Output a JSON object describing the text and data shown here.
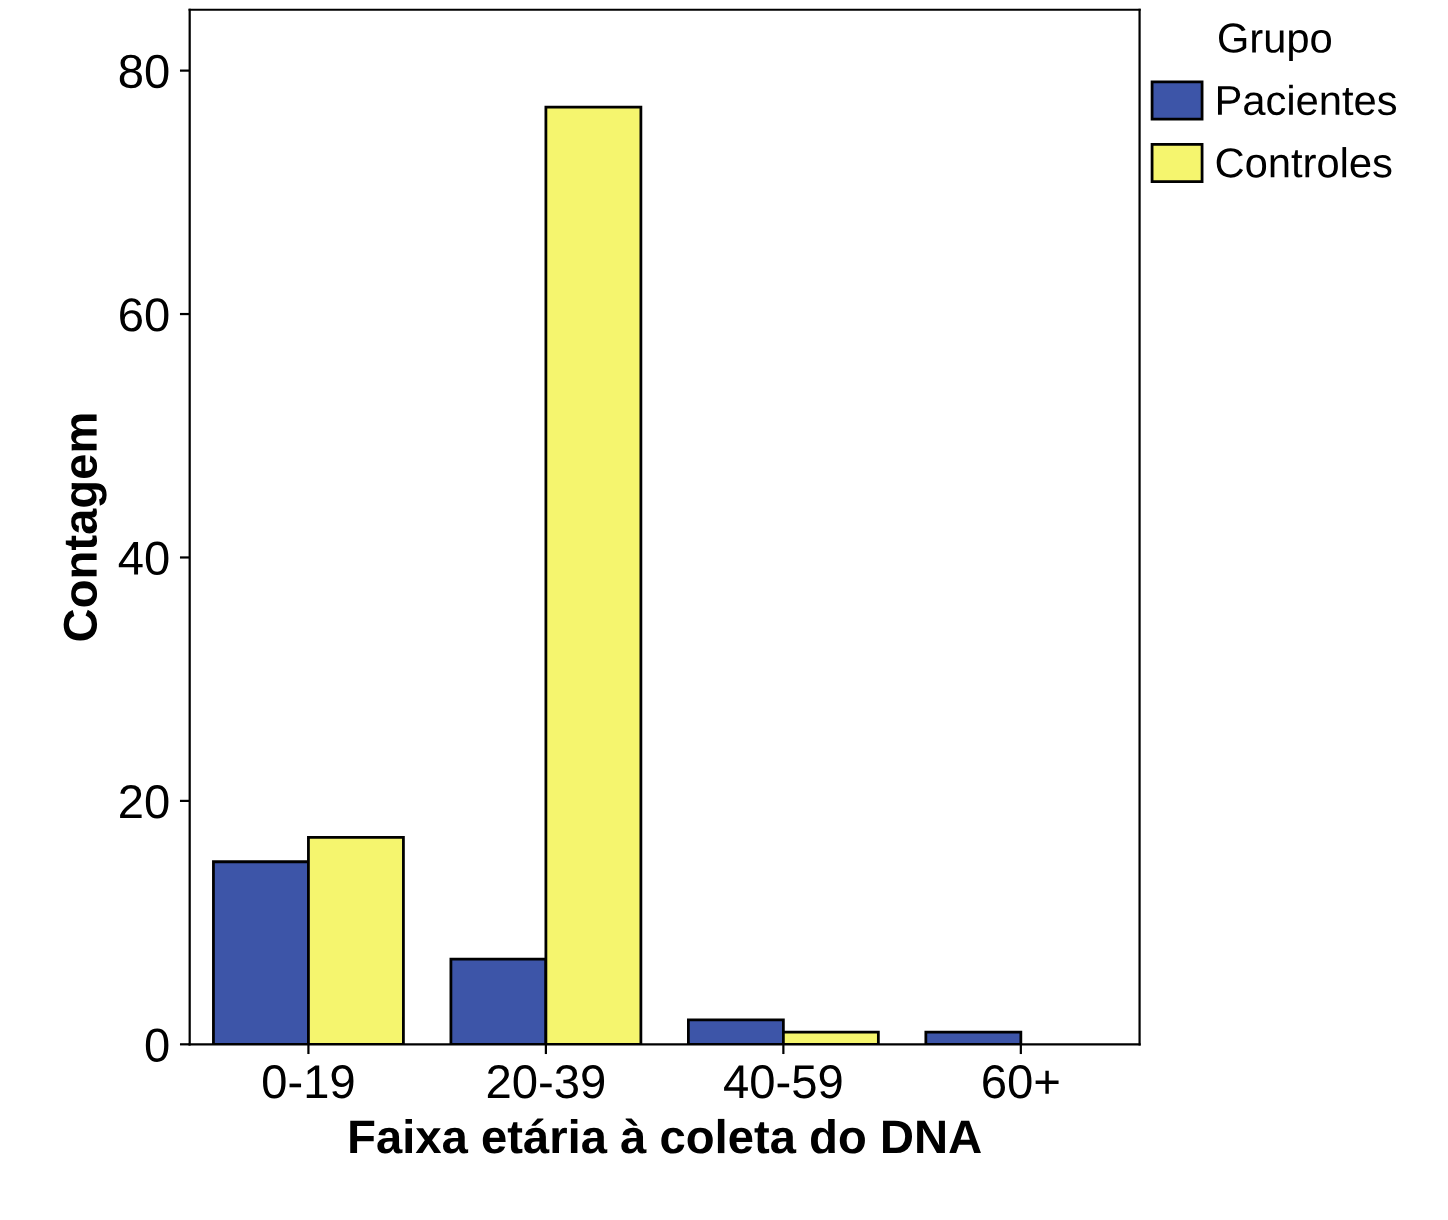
{
  "chart_data": {
    "type": "bar",
    "xlabel": "Faixa etária à coleta do DNA",
    "ylabel": "Contagem",
    "legend_title": "Grupo",
    "categories": [
      "0-19",
      "20-39",
      "40-59",
      "60+"
    ],
    "series": [
      {
        "name": "Pacientes",
        "color": "#3d55a8",
        "values": [
          15,
          7,
          2,
          1
        ]
      },
      {
        "name": "Controles",
        "color": "#f5f56e",
        "values": [
          17,
          77,
          1,
          0
        ]
      }
    ],
    "ylim": [
      0,
      85
    ],
    "yticks": [
      0,
      20,
      40,
      60,
      80
    ],
    "grid": false,
    "legend": "top right"
  }
}
